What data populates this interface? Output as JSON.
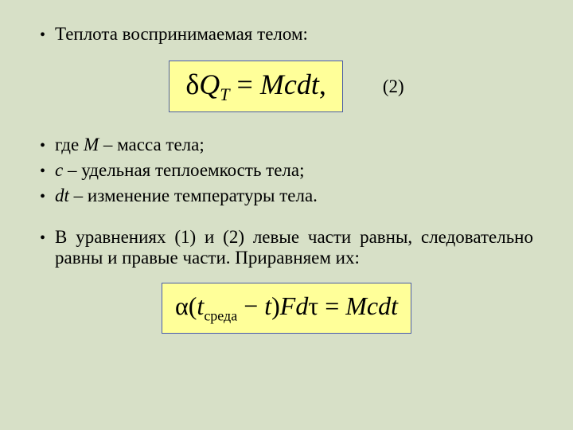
{
  "heading": "Теплота воспринимаемая телом:",
  "formula1": {
    "delta": "δ",
    "Q": "Q",
    "Q_sub": "T",
    "equals": " = ",
    "rhs": "Mcdt",
    "comma": ",",
    "box_background": "#ffff99",
    "box_border": "#4a5ca8",
    "fontsize": 36
  },
  "eq_number": "(2)",
  "definitions": [
    {
      "var": "M",
      "text": "где ",
      "rest": " – масса тела;"
    },
    {
      "var": "c",
      "text": "",
      "rest": " – удельная теплоемкость тела;"
    },
    {
      "var": "dt",
      "text": "",
      "rest": " – изменение температуры тела."
    }
  ],
  "paragraph": "В уравнениях (1) и (2) левые части равны, следовательно равны и правые части. Приравняем их:",
  "formula2": {
    "alpha": "α",
    "open": "(",
    "t1": "t",
    "t1_sub": "среда",
    "minus": " − ",
    "t2": "t",
    "close": ")",
    "Fd": "Fd",
    "tau": "τ",
    "equals": " = ",
    "rhs": "Mcdt",
    "box_background": "#ffff99",
    "box_border": "#4a5ca8",
    "fontsize": 32
  },
  "colors": {
    "page_background": "#d7e0c7",
    "text": "#000000"
  },
  "bullet_char": "•"
}
